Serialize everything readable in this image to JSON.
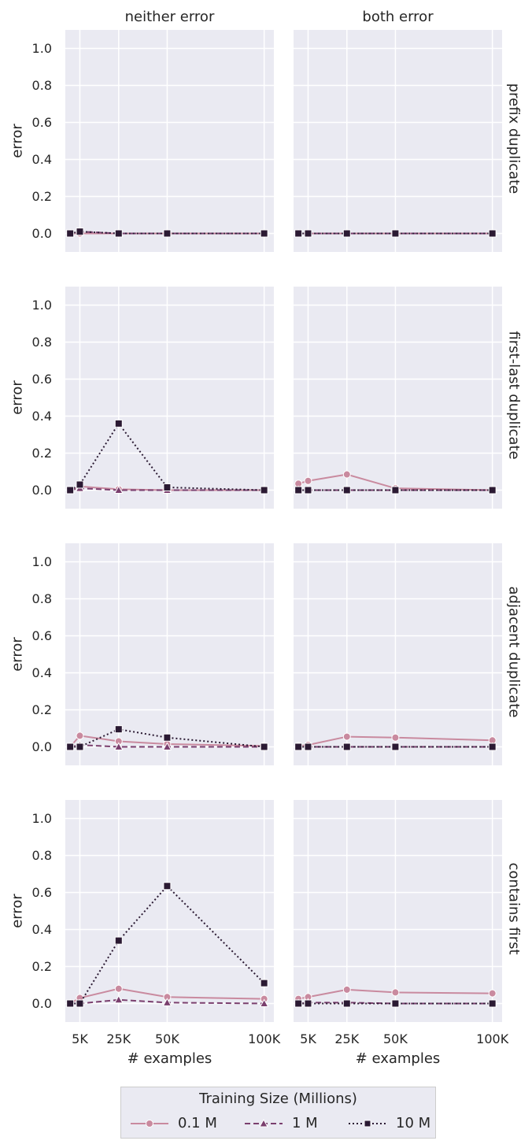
{
  "chart_data": {
    "type": "line",
    "x_label": "# examples",
    "y_label": "error",
    "x": [
      0,
      5000,
      25000,
      50000,
      100000
    ],
    "x_tick_labels": [
      "5K",
      "25K",
      "50K",
      "100K"
    ],
    "x_ticks": [
      5000,
      25000,
      50000,
      100000
    ],
    "ylim": [
      -0.1,
      1.1
    ],
    "y_ticks": [
      "0.0",
      "0.2",
      "0.4",
      "0.6",
      "0.8",
      "1.0"
    ],
    "grid": true,
    "columns": [
      "neither error",
      "both error"
    ],
    "rows": [
      "prefix duplicate",
      "first-last duplicate",
      "adjacent duplicate",
      "contains first"
    ],
    "legend": {
      "title": "Training Size (Millions)",
      "placement": "bottom-center",
      "entries": [
        "0.1 M",
        "1 M",
        "10 M"
      ]
    },
    "series_styles": [
      {
        "name": "0.1 M",
        "color": "#c98a9f",
        "marker": "circle",
        "dash": "solid"
      },
      {
        "name": "1 M",
        "color": "#7a3f6e",
        "marker": "triangle",
        "dash": "dashed"
      },
      {
        "name": "10 M",
        "color": "#2b1a33",
        "marker": "square",
        "dash": "dotted"
      }
    ],
    "panels": [
      {
        "row": "prefix duplicate",
        "column": "neither error",
        "series": [
          {
            "name": "0.1 M",
            "values": [
              0.0,
              0.0,
              0.0,
              0.0,
              0.0
            ]
          },
          {
            "name": "1 M",
            "values": [
              0.0,
              0.01,
              0.0,
              0.0,
              0.0
            ]
          },
          {
            "name": "10 M",
            "values": [
              0.0,
              0.01,
              0.0,
              0.0,
              0.0
            ]
          }
        ]
      },
      {
        "row": "prefix duplicate",
        "column": "both error",
        "series": [
          {
            "name": "0.1 M",
            "values": [
              0.0,
              0.0,
              0.0,
              0.0,
              0.0
            ]
          },
          {
            "name": "1 M",
            "values": [
              0.0,
              0.0,
              0.0,
              0.0,
              0.0
            ]
          },
          {
            "name": "10 M",
            "values": [
              0.0,
              0.0,
              0.0,
              0.0,
              0.0
            ]
          }
        ]
      },
      {
        "row": "first-last duplicate",
        "column": "neither error",
        "series": [
          {
            "name": "0.1 M",
            "values": [
              0.0,
              0.02,
              0.005,
              0.0,
              0.0
            ]
          },
          {
            "name": "1 M",
            "values": [
              0.0,
              0.01,
              0.0,
              0.0,
              0.0
            ]
          },
          {
            "name": "10 M",
            "values": [
              0.0,
              0.03,
              0.36,
              0.015,
              0.0
            ]
          }
        ]
      },
      {
        "row": "first-last duplicate",
        "column": "both error",
        "series": [
          {
            "name": "0.1 M",
            "values": [
              0.035,
              0.05,
              0.085,
              0.01,
              0.0
            ]
          },
          {
            "name": "1 M",
            "values": [
              0.0,
              0.0,
              0.0,
              0.0,
              0.0
            ]
          },
          {
            "name": "10 M",
            "values": [
              0.0,
              0.0,
              0.0,
              0.0,
              0.0
            ]
          }
        ]
      },
      {
        "row": "adjacent duplicate",
        "column": "neither error",
        "series": [
          {
            "name": "0.1 M",
            "values": [
              0.0,
              0.06,
              0.03,
              0.015,
              0.005
            ]
          },
          {
            "name": "1 M",
            "values": [
              0.0,
              0.01,
              0.0,
              0.0,
              0.0
            ]
          },
          {
            "name": "10 M",
            "values": [
              0.0,
              0.0,
              0.095,
              0.05,
              0.0
            ]
          }
        ]
      },
      {
        "row": "adjacent duplicate",
        "column": "both error",
        "series": [
          {
            "name": "0.1 M",
            "values": [
              0.005,
              0.01,
              0.055,
              0.05,
              0.035
            ]
          },
          {
            "name": "1 M",
            "values": [
              0.0,
              0.0,
              0.0,
              0.0,
              0.0
            ]
          },
          {
            "name": "10 M",
            "values": [
              0.0,
              0.0,
              0.0,
              0.0,
              0.0
            ]
          }
        ]
      },
      {
        "row": "contains first",
        "column": "neither error",
        "series": [
          {
            "name": "0.1 M",
            "values": [
              0.0,
              0.03,
              0.08,
              0.035,
              0.025
            ]
          },
          {
            "name": "1 M",
            "values": [
              0.0,
              0.0,
              0.02,
              0.005,
              0.0
            ]
          },
          {
            "name": "10 M",
            "values": [
              0.0,
              0.0,
              0.34,
              0.635,
              0.11
            ]
          }
        ]
      },
      {
        "row": "contains first",
        "column": "both error",
        "series": [
          {
            "name": "0.1 M",
            "values": [
              0.025,
              0.035,
              0.075,
              0.06,
              0.055
            ]
          },
          {
            "name": "1 M",
            "values": [
              0.0,
              0.005,
              0.005,
              0.0,
              0.0
            ]
          },
          {
            "name": "10 M",
            "values": [
              0.0,
              0.0,
              0.0,
              0.0,
              0.0
            ]
          }
        ]
      }
    ]
  }
}
